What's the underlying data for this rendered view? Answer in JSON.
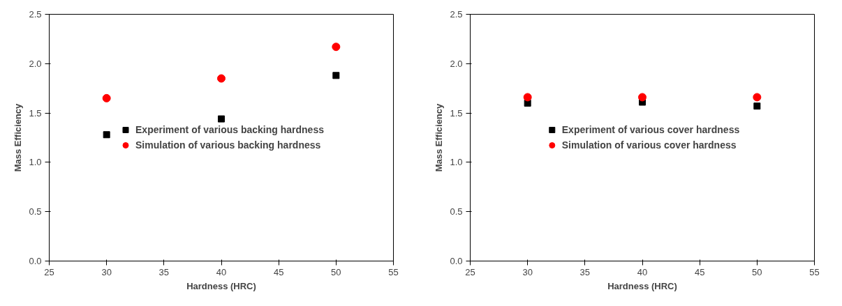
{
  "chart_data": [
    {
      "type": "scatter",
      "xlabel": "Hardness (HRC)",
      "ylabel": "Mass Efficiency",
      "x": [
        30,
        40,
        50
      ],
      "xlim": [
        25,
        55
      ],
      "xticks": [
        25,
        30,
        35,
        40,
        45,
        50,
        55
      ],
      "ylim": [
        0,
        2.5
      ],
      "yticks": [
        {
          "value": 0,
          "label": "0.0"
        },
        0.5,
        {
          "value": 1,
          "label": "1.0"
        },
        1.5,
        {
          "value": 2,
          "label": "2.0"
        },
        2.5
      ],
      "grid": false,
      "legend": "center",
      "series": [
        {
          "name": "Experiment of various backing hardness",
          "color": "#000000",
          "marker": "square",
          "values": [
            1.28,
            1.44,
            1.88
          ]
        },
        {
          "name": "Simulation of various backing hardness",
          "color": "#ff0000",
          "marker": "circle",
          "values": [
            1.65,
            1.85,
            2.17
          ]
        }
      ]
    },
    {
      "type": "scatter",
      "xlabel": "Hardness (HRC)",
      "ylabel": "Mass Efficiency",
      "x": [
        30,
        40,
        50
      ],
      "xlim": [
        25,
        55
      ],
      "xticks": [
        25,
        30,
        35,
        40,
        45,
        50,
        55
      ],
      "ylim": [
        0,
        2.5
      ],
      "yticks": [
        {
          "value": 0,
          "label": "0.0"
        },
        0.5,
        {
          "value": 1,
          "label": "1.0"
        },
        1.5,
        {
          "value": 2,
          "label": "2.0"
        },
        2.5
      ],
      "grid": false,
      "legend": "center",
      "series": [
        {
          "name": "Experiment of various cover hardness",
          "color": "#000000",
          "marker": "square",
          "values": [
            1.6,
            1.61,
            1.57
          ]
        },
        {
          "name": "Simulation of various cover hardness",
          "color": "#ff0000",
          "marker": "circle",
          "values": [
            1.66,
            1.66,
            1.66
          ]
        }
      ]
    }
  ]
}
